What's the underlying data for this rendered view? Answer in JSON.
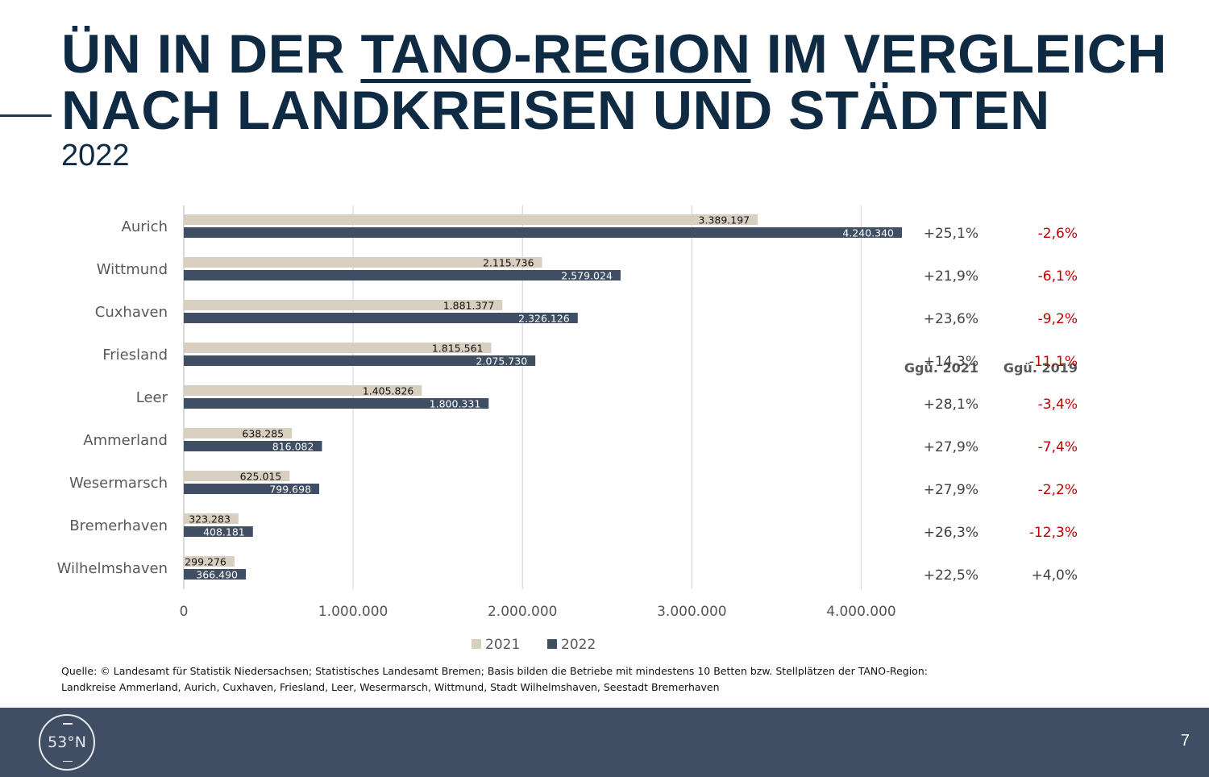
{
  "title": {
    "line1_prefix": "ÜN IN DER ",
    "line1_underlined": "TANO-REGION",
    "line1_suffix": " IM VERGLEICH",
    "line2": "NACH LANDKREISEN UND STÄDTEN"
  },
  "subtitle": "2022",
  "chart_data": {
    "type": "bar",
    "orientation": "horizontal",
    "categories": [
      "Aurich",
      "Wittmund",
      "Cuxhaven",
      "Friesland",
      "Leer",
      "Ammerland",
      "Wesermarsch",
      "Bremerhaven",
      "Wilhelmshaven"
    ],
    "series": [
      {
        "name": "2021",
        "color": "#d9cfc1",
        "values": [
          3389197,
          2115736,
          1881377,
          1815561,
          1405826,
          638285,
          625015,
          323283,
          299276
        ],
        "labels": [
          "3.389.197",
          "2.115.736",
          "1.881.377",
          "1.815.561",
          "1.405.826",
          "638.285",
          "625.015",
          "323.283",
          "299.276"
        ]
      },
      {
        "name": "2022",
        "color": "#3f4e62",
        "values": [
          4240340,
          2579024,
          2326126,
          2075730,
          1800331,
          816082,
          799698,
          408181,
          366490
        ],
        "labels": [
          "4.240.340",
          "2.579.024",
          "2.326.126",
          "2.075.730",
          "1.800.331",
          "816.082",
          "799.698",
          "408.181",
          "366.490"
        ]
      }
    ],
    "xlim": [
      0,
      4240340
    ],
    "xticks": [
      0,
      1000000,
      2000000,
      3000000,
      4000000
    ],
    "xtick_labels": [
      "0",
      "1.000.000",
      "2.000.000",
      "3.000.000",
      "4.000.000"
    ],
    "grid": true,
    "legend": "bottom-center",
    "comparison_columns": [
      {
        "header": "Ggü. 2021",
        "values": [
          "+25,1%",
          "+21,9%",
          "+23,6%",
          "+14,3%",
          "+28,1%",
          "+27,9%",
          "+27,9%",
          "+26,3%",
          "+22,5%"
        ]
      },
      {
        "header": "Ggü. 2019",
        "values": [
          "-2,6%",
          "-6,1%",
          "-9,2%",
          "-11,1%",
          "-3,4%",
          "-7,4%",
          "-2,2%",
          "-12,3%",
          "+4,0%"
        ]
      }
    ],
    "colors": {
      "negative": "#c00000",
      "neutral": "#404040"
    }
  },
  "source": {
    "line1": "Quelle: © Landesamt für Statistik Niedersachsen; Statistisches Landesamt Bremen; Basis bilden die Betriebe mit mindestens 10 Betten bzw. Stellplätzen der TANO-Region:",
    "line2": "Landkreise Ammerland, Aurich, Cuxhaven, Friesland, Leer, Wesermarsch, Wittmund, Stadt Wilhelmshaven, Seestadt Bremerhaven"
  },
  "footer": {
    "logo_text": "53°N",
    "page_number": "7"
  }
}
